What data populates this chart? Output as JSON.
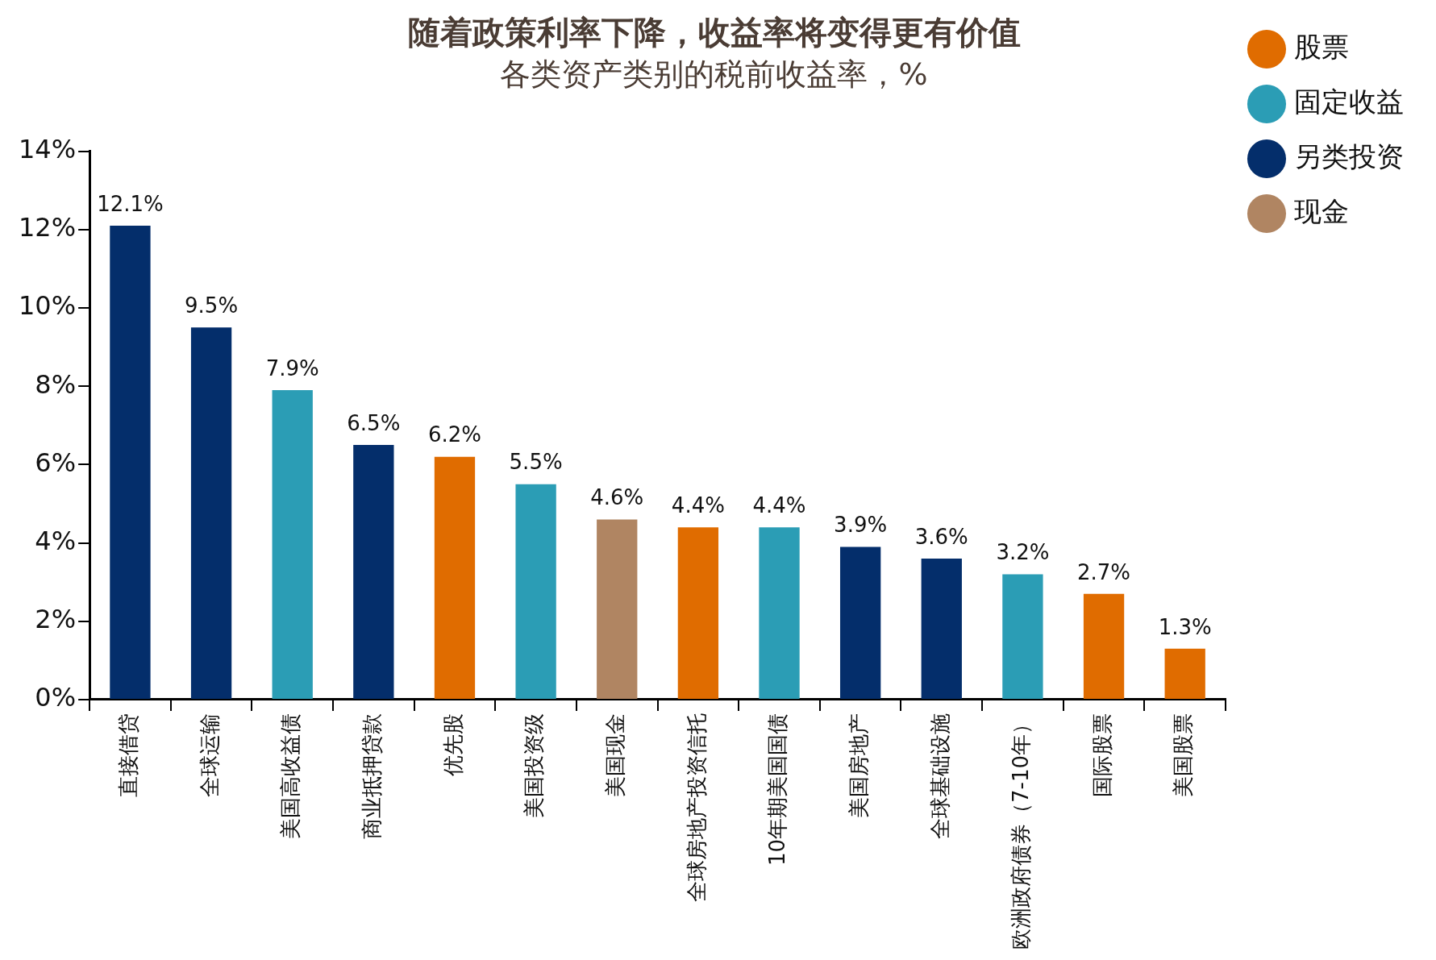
{
  "chart_data": {
    "type": "bar",
    "title": "随着政策利率下降，收益率将变得更有价值",
    "subtitle": "各类资产类别的税前收益率，%",
    "categories": [
      "直接借贷",
      "全球运输",
      "美国高收益债",
      "商业抵押贷款",
      "优先股",
      "美国投资级",
      "美国现金",
      "全球房地产投资信托",
      "10年期美国国债",
      "美国房地产",
      "全球基础设施",
      "欧洲政府债券（7-10年）",
      "国际股票",
      "美国股票"
    ],
    "stacked": true,
    "series": [
      {
        "name": "股票",
        "color": "#e06c00",
        "values": [
          null,
          null,
          null,
          null,
          6.2,
          null,
          null,
          4.4,
          null,
          null,
          null,
          null,
          2.7,
          1.3
        ],
        "value_labels": [
          null,
          null,
          null,
          null,
          "6.2%",
          null,
          null,
          "4.4%",
          null,
          null,
          null,
          null,
          "2.7%",
          "1.3%"
        ]
      },
      {
        "name": "固定收益",
        "color": "#2b9db5",
        "values": [
          null,
          null,
          7.9,
          null,
          null,
          5.5,
          null,
          null,
          4.4,
          null,
          null,
          3.2,
          null,
          null
        ],
        "value_labels": [
          null,
          null,
          "7.9%",
          null,
          null,
          "5.5%",
          null,
          null,
          "4.4%",
          null,
          null,
          "3.2%",
          null,
          null
        ]
      },
      {
        "name": "另类投资",
        "color": "#042e6b",
        "values": [
          12.1,
          9.5,
          null,
          6.5,
          null,
          null,
          null,
          null,
          null,
          3.9,
          3.6,
          null,
          null,
          null
        ],
        "value_labels": [
          "12.1%",
          "9.5%",
          null,
          "6.5%",
          null,
          null,
          null,
          null,
          null,
          "3.9%",
          "3.6%",
          null,
          null,
          null
        ]
      },
      {
        "name": "现金",
        "color": "#b08562",
        "values": [
          null,
          null,
          null,
          null,
          null,
          null,
          4.6,
          null,
          null,
          null,
          null,
          null,
          null,
          null
        ],
        "value_labels": [
          null,
          null,
          null,
          null,
          null,
          null,
          "4.6%",
          null,
          null,
          null,
          null,
          null,
          null,
          null
        ]
      }
    ],
    "ylim": [
      0,
      14
    ],
    "yticks": [
      {
        "value": 0,
        "label": "0%"
      },
      {
        "value": 2,
        "label": "2%"
      },
      {
        "value": 4,
        "label": "4%"
      },
      {
        "value": 6,
        "label": "6%"
      },
      {
        "value": 8,
        "label": "8%"
      },
      {
        "value": 10,
        "label": "10%"
      },
      {
        "value": 12,
        "label": "12%"
      },
      {
        "value": 14,
        "label": "14%"
      }
    ],
    "grid": false,
    "legend": "top right"
  }
}
